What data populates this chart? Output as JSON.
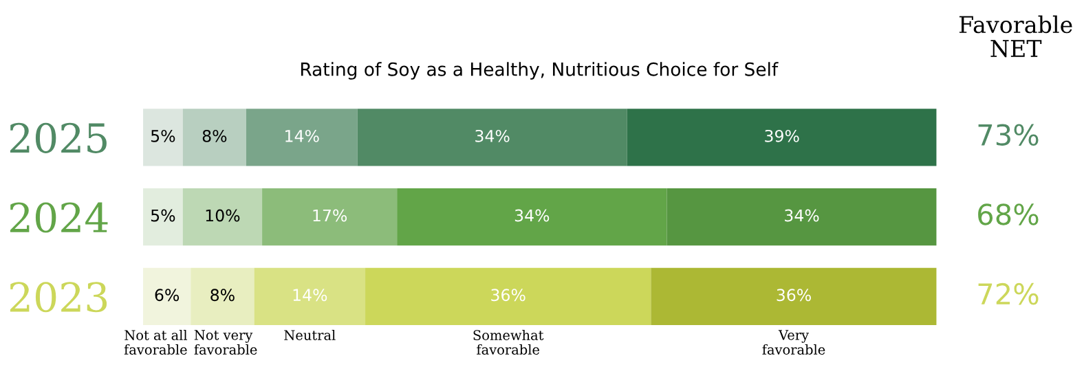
{
  "chart_data": {
    "type": "bar",
    "orientation": "horizontal",
    "stacked": true,
    "legend": false,
    "grid": false,
    "tick_labels": "y",
    "title": "Rating of Soy as a Healthy, Nutritious Choice for Self",
    "categories": [
      "2025",
      "2024",
      "2023"
    ],
    "series": [
      {
        "name": "Not at all\nfavorable",
        "colors": [
          "#dce6df",
          "#e2edde",
          "#f1f4dd"
        ],
        "values": [
          5,
          5,
          6
        ],
        "value_labels": [
          "5%",
          "5%",
          "6%"
        ]
      },
      {
        "name": "Not very\nfavorable",
        "colors": [
          "#b8cfc0",
          "#bdd8b4",
          "#e8eec0"
        ],
        "values": [
          8,
          10,
          8
        ],
        "value_labels": [
          "8%",
          "10%",
          "8%"
        ]
      },
      {
        "name": "Neutral",
        "colors": [
          "#7aa58a",
          "#8cbc7a",
          "#d9e284"
        ],
        "values": [
          14,
          17,
          14
        ],
        "value_labels": [
          "14%",
          "17%",
          "14%"
        ]
      },
      {
        "name": "Somewhat\nfavorable",
        "colors": [
          "#518a65",
          "#62a548",
          "#ccd75a"
        ],
        "values": [
          34,
          34,
          36
        ],
        "value_labels": [
          "34%",
          "34%",
          "36%"
        ]
      },
      {
        "name": "Very\nfavorable",
        "colors": [
          "#2e7249",
          "#569641",
          "#acb834"
        ],
        "values": [
          39,
          34,
          36
        ],
        "value_labels": [
          "39%",
          "34%",
          "36%"
        ]
      }
    ],
    "annotations": [
      "Favorable\nNET",
      "73%",
      "68%",
      "72%"
    ]
  }
}
